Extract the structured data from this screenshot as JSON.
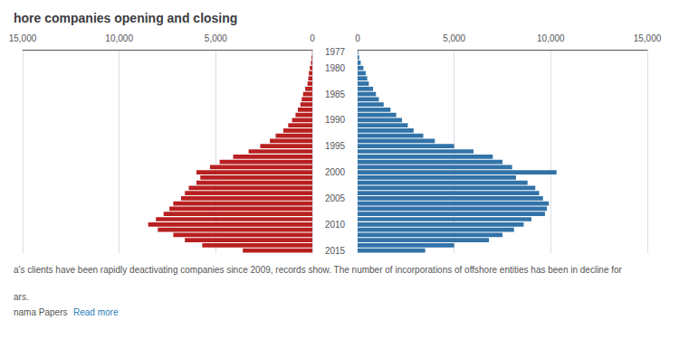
{
  "chart_data": {
    "type": "bar",
    "orientation": "horizontal",
    "title": "hore companies opening and closing",
    "annotations": [
      "a's clients have been rapidly deactivating companies since 2009, records show. The number of incorporations of offshore entities has been in decline for",
      "ars.",
      "nama Papers ",
      "Read more"
    ],
    "categories": [
      "1977",
      null,
      null,
      "1980",
      null,
      null,
      null,
      null,
      "1985",
      null,
      null,
      null,
      null,
      "1990",
      null,
      null,
      null,
      null,
      "1995",
      null,
      null,
      null,
      null,
      "2000",
      null,
      null,
      null,
      null,
      "2005",
      null,
      null,
      null,
      null,
      "2010",
      null,
      null,
      null,
      null,
      "2015"
    ],
    "series": [
      {
        "color": "#b82020",
        "values": [
          15,
          40,
          70,
          130,
          180,
          210,
          250,
          370,
          480,
          550,
          620,
          750,
          870,
          1050,
          1250,
          1500,
          1900,
          2200,
          2700,
          3300,
          4100,
          4800,
          5300,
          6000,
          5800,
          6000,
          6400,
          6600,
          6800,
          7200,
          7400,
          7700,
          8100,
          8500,
          8000,
          7200,
          6600,
          5700,
          3600
        ]
      },
      {
        "color": "#3273a8",
        "values": [
          30,
          80,
          160,
          300,
          420,
          500,
          580,
          800,
          950,
          1100,
          1350,
          1700,
          2000,
          2300,
          2600,
          2900,
          3400,
          4000,
          5000,
          6000,
          7000,
          7500,
          8000,
          10300,
          8200,
          8800,
          9200,
          9400,
          9600,
          9900,
          9800,
          9700,
          9000,
          8600,
          8100,
          7500,
          6800,
          5000,
          3500
        ]
      }
    ],
    "xlim": [
      0,
      15000
    ],
    "xticks": [
      0,
      {
        "value": 5000,
        "label": "5,000"
      },
      {
        "value": 10000,
        "label": "10,000"
      },
      {
        "value": 15000,
        "label": "15,000"
      }
    ],
    "grid": true
  }
}
